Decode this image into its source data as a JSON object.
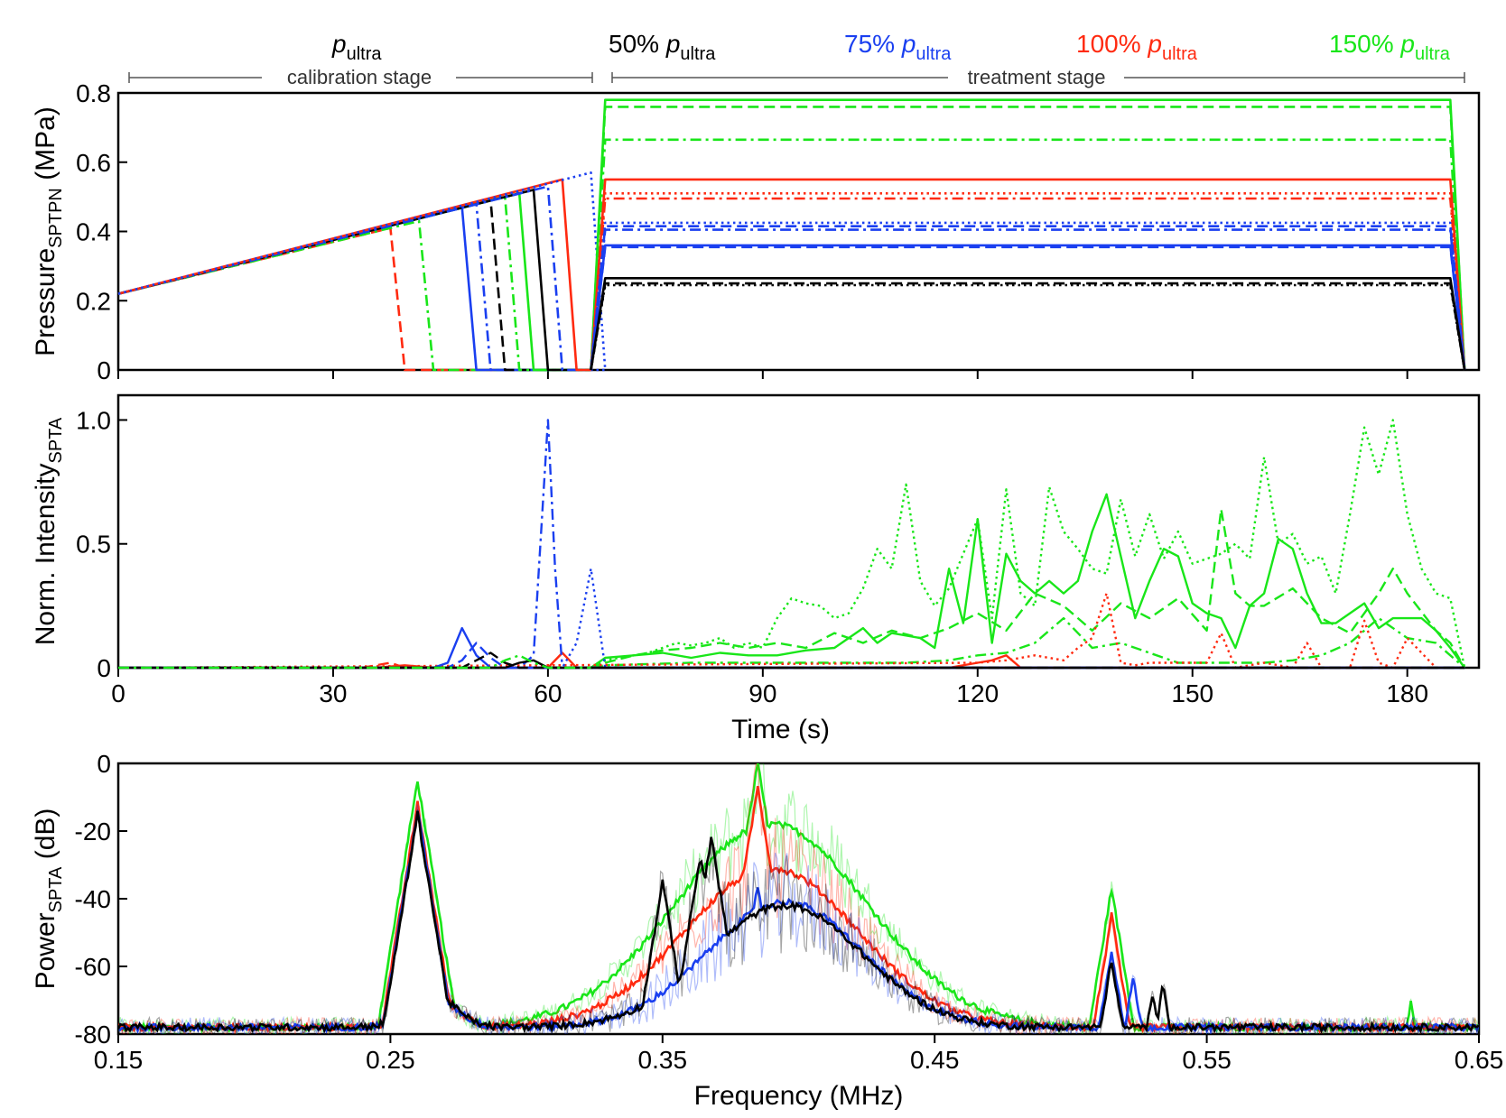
{
  "colors": {
    "black": "#000000",
    "blue": "#1a3ff0",
    "red": "#ff2a10",
    "green": "#19e619",
    "axis": "#000000",
    "bracket": "#555555"
  },
  "header": {
    "calibration": {
      "p": "p",
      "sub": "ultra",
      "stage_label": "calibration stage"
    },
    "treatment_stage_label": "treatment stage",
    "groups": [
      {
        "pct": "50% ",
        "p": "p",
        "sub": "ultra",
        "color": "#000000"
      },
      {
        "pct": "75% ",
        "p": "p",
        "sub": "ultra",
        "color": "#1a3ff0"
      },
      {
        "pct": "100% ",
        "p": "p",
        "sub": "ultra",
        "color": "#ff2a10"
      },
      {
        "pct": "150% ",
        "p": "p",
        "sub": "ultra",
        "color": "#19e619"
      }
    ]
  },
  "chart_data": [
    {
      "id": "pressure",
      "type": "line",
      "ylabel_main": "Pressure",
      "ylabel_sub": "SPTPN",
      "ylabel_unit": " (MPa)",
      "xlim": [
        0,
        190
      ],
      "ylim": [
        0,
        0.8
      ],
      "yticks": [
        "0",
        "0.2",
        "0.4",
        "0.6",
        "0.8"
      ],
      "ytick_values": [
        0,
        0.2,
        0.4,
        0.6,
        0.8
      ],
      "xtick_values": [
        0,
        30,
        60,
        90,
        120,
        150,
        180
      ],
      "calibration_ramp": {
        "start": [
          0,
          0.22
        ],
        "slope_per_s": 0.005
      },
      "calibration_drops": [
        {
          "color": "red",
          "style": "dashed",
          "t_drop": 38,
          "t_end": 40,
          "p_drop": 0.41
        },
        {
          "color": "green",
          "style": "dashdot",
          "t_drop": 42,
          "t_end": 44,
          "p_drop": 0.43
        },
        {
          "color": "blue",
          "style": "solid",
          "t_drop": 48,
          "t_end": 50,
          "p_drop": 0.47
        },
        {
          "color": "blue",
          "style": "dashdot",
          "t_drop": 50,
          "t_end": 52,
          "p_drop": 0.48
        },
        {
          "color": "black",
          "style": "dashed",
          "t_drop": 52,
          "t_end": 54,
          "p_drop": 0.49
        },
        {
          "color": "green",
          "style": "dashdot",
          "t_drop": 54,
          "t_end": 56,
          "p_drop": 0.5
        },
        {
          "color": "green",
          "style": "solid",
          "t_drop": 56,
          "t_end": 58,
          "p_drop": 0.51
        },
        {
          "color": "black",
          "style": "solid",
          "t_drop": 58,
          "t_end": 60,
          "p_drop": 0.52
        },
        {
          "color": "blue",
          "style": "dashdot",
          "t_drop": 60,
          "t_end": 62,
          "p_drop": 0.53
        },
        {
          "color": "red",
          "style": "solid",
          "t_drop": 62,
          "t_end": 64,
          "p_drop": 0.55
        },
        {
          "color": "blue",
          "style": "dotted",
          "t_drop": 66,
          "t_end": 68,
          "p_drop": 0.57
        }
      ],
      "treatment": {
        "t_zero": 66,
        "t_rise": 68,
        "t_fall": 186,
        "t_end": 188,
        "levels": [
          {
            "color": "green",
            "style": "solid",
            "p": 0.78
          },
          {
            "color": "green",
            "style": "dashed",
            "p": 0.76
          },
          {
            "color": "green",
            "style": "dashdot",
            "p": 0.665
          },
          {
            "color": "red",
            "style": "solid",
            "p": 0.55
          },
          {
            "color": "red",
            "style": "dotted",
            "p": 0.51
          },
          {
            "color": "red",
            "style": "dashdot",
            "p": 0.495
          },
          {
            "color": "blue",
            "style": "dotted",
            "p": 0.425
          },
          {
            "color": "blue",
            "style": "dashed",
            "p": 0.415
          },
          {
            "color": "blue",
            "style": "dashdot",
            "p": 0.405
          },
          {
            "color": "blue",
            "style": "solid",
            "p": 0.36
          },
          {
            "color": "blue",
            "style": "dashed",
            "p": 0.355
          },
          {
            "color": "black",
            "style": "solid",
            "p": 0.265
          },
          {
            "color": "black",
            "style": "dashed",
            "p": 0.25
          },
          {
            "color": "black",
            "style": "dotted",
            "p": 0.245
          }
        ]
      }
    },
    {
      "id": "intensity",
      "type": "line",
      "ylabel_main": "Norm. Intensity",
      "ylabel_sub": "SPTA",
      "xlabel": "Time (s)",
      "xlim": [
        0,
        190
      ],
      "ylim": [
        0,
        1.1
      ],
      "yticks": [
        "0",
        "0.5",
        "1.0"
      ],
      "ytick_values": [
        0,
        0.5,
        1.0
      ],
      "xticks": [
        "0",
        "30",
        "60",
        "90",
        "120",
        "150",
        "180"
      ],
      "xtick_values": [
        0,
        30,
        60,
        90,
        120,
        150,
        180
      ],
      "series": [
        {
          "color": "green",
          "style": "dotted",
          "x": [
            0,
            66,
            68,
            70,
            72,
            74,
            76,
            78,
            80,
            82,
            84,
            86,
            88,
            90,
            92,
            94,
            96,
            98,
            100,
            102,
            104,
            106,
            108,
            110,
            112,
            114,
            116,
            118,
            120,
            122,
            124,
            126,
            128,
            130,
            132,
            134,
            136,
            138,
            140,
            142,
            144,
            146,
            148,
            150,
            152,
            154,
            156,
            158,
            160,
            162,
            164,
            166,
            168,
            170,
            172,
            174,
            176,
            178,
            180,
            182,
            184,
            186,
            188
          ],
          "y": [
            0,
            0,
            0.03,
            0.04,
            0.05,
            0.06,
            0.08,
            0.1,
            0.09,
            0.1,
            0.12,
            0.08,
            0.1,
            0.08,
            0.2,
            0.28,
            0.26,
            0.25,
            0.2,
            0.22,
            0.32,
            0.48,
            0.4,
            0.74,
            0.35,
            0.25,
            0.32,
            0.46,
            0.6,
            0.2,
            0.72,
            0.3,
            0.25,
            0.73,
            0.55,
            0.48,
            0.4,
            0.38,
            0.68,
            0.45,
            0.62,
            0.44,
            0.55,
            0.42,
            0.44,
            0.46,
            0.5,
            0.44,
            0.85,
            0.5,
            0.54,
            0.42,
            0.45,
            0.3,
            0.62,
            0.97,
            0.78,
            1.0,
            0.62,
            0.4,
            0.3,
            0.28,
            0.0
          ]
        },
        {
          "color": "green",
          "style": "solid",
          "x": [
            0,
            66,
            68,
            72,
            76,
            80,
            84,
            88,
            92,
            96,
            100,
            104,
            106,
            108,
            112,
            114,
            116,
            118,
            120,
            122,
            124,
            126,
            128,
            130,
            132,
            134,
            136,
            138,
            140,
            142,
            144,
            146,
            148,
            150,
            152,
            154,
            156,
            158,
            160,
            162,
            164,
            166,
            168,
            170,
            172,
            174,
            176,
            178,
            180,
            182,
            184,
            186,
            188
          ],
          "y": [
            0,
            0,
            0.04,
            0.05,
            0.06,
            0.04,
            0.06,
            0.05,
            0.05,
            0.07,
            0.08,
            0.16,
            0.1,
            0.14,
            0.12,
            0.08,
            0.4,
            0.18,
            0.6,
            0.1,
            0.46,
            0.35,
            0.3,
            0.35,
            0.3,
            0.35,
            0.55,
            0.7,
            0.45,
            0.2,
            0.35,
            0.48,
            0.45,
            0.26,
            0.22,
            0.2,
            0.08,
            0.25,
            0.3,
            0.52,
            0.48,
            0.3,
            0.18,
            0.18,
            0.22,
            0.26,
            0.16,
            0.2,
            0.2,
            0.2,
            0.15,
            0.08,
            0.0
          ]
        },
        {
          "color": "green",
          "style": "dashed",
          "x": [
            0,
            66,
            68,
            72,
            76,
            80,
            84,
            88,
            92,
            96,
            100,
            104,
            108,
            112,
            116,
            120,
            124,
            128,
            132,
            136,
            140,
            144,
            148,
            152,
            154,
            156,
            158,
            160,
            164,
            168,
            172,
            176,
            178,
            180,
            184,
            186,
            188
          ],
          "y": [
            0,
            0,
            0.02,
            0.05,
            0.07,
            0.08,
            0.1,
            0.08,
            0.1,
            0.08,
            0.14,
            0.1,
            0.15,
            0.12,
            0.16,
            0.22,
            0.15,
            0.3,
            0.25,
            0.15,
            0.26,
            0.2,
            0.28,
            0.15,
            0.64,
            0.3,
            0.25,
            0.25,
            0.32,
            0.2,
            0.14,
            0.3,
            0.4,
            0.3,
            0.15,
            0.1,
            0.0
          ]
        },
        {
          "color": "green",
          "style": "dashdot",
          "x": [
            0,
            66,
            68,
            80,
            100,
            110,
            116,
            120,
            124,
            128,
            132,
            136,
            140,
            144,
            148,
            152,
            156,
            160,
            164,
            168,
            172,
            176,
            180,
            184,
            188
          ],
          "y": [
            0,
            0,
            0.01,
            0.02,
            0.02,
            0.02,
            0.03,
            0.05,
            0.06,
            0.1,
            0.2,
            0.08,
            0.1,
            0.06,
            0.02,
            0.02,
            0.02,
            0.02,
            0.03,
            0.05,
            0.1,
            0.2,
            0.12,
            0.1,
            0.0
          ]
        },
        {
          "color": "red",
          "style": "dotted",
          "x": [
            0,
            120,
            124,
            128,
            132,
            134,
            136,
            138,
            140,
            142,
            144,
            148,
            152,
            154,
            156,
            160,
            164,
            166,
            168,
            172,
            174,
            176,
            178,
            180,
            184,
            188
          ],
          "y": [
            0,
            0.02,
            0.03,
            0.05,
            0.03,
            0.08,
            0.12,
            0.3,
            0.02,
            0.01,
            0.02,
            0.02,
            0.02,
            0.14,
            0.0,
            0.02,
            0.0,
            0.1,
            0.0,
            0.0,
            0.19,
            0.02,
            0.0,
            0.12,
            0.0,
            0.0
          ]
        },
        {
          "color": "red",
          "style": "solid",
          "x": [
            0,
            36,
            40,
            44,
            48,
            56,
            60,
            62,
            64,
            66,
            68,
            116,
            120,
            122,
            124,
            126,
            128,
            188
          ],
          "y": [
            0,
            0.0,
            0.01,
            0.0,
            0.0,
            0.0,
            0.0,
            0.06,
            0.0,
            0.0,
            0.0,
            0.0,
            0.02,
            0.03,
            0.05,
            0.0,
            0.0,
            0.0
          ]
        },
        {
          "color": "red",
          "style": "dashed",
          "x": [
            0,
            34,
            38,
            40,
            48,
            60,
            188
          ],
          "y": [
            0,
            0.0,
            0.02,
            0.0,
            0.0,
            0.0,
            0.0
          ]
        },
        {
          "color": "blue",
          "style": "solid",
          "x": [
            0,
            40,
            44,
            46,
            48,
            50,
            52,
            54,
            188
          ],
          "y": [
            0,
            0.0,
            0.0,
            0.02,
            0.16,
            0.05,
            0.0,
            0.0,
            0.0
          ]
        },
        {
          "color": "blue",
          "style": "dashed",
          "x": [
            0,
            46,
            48,
            50,
            52,
            54,
            188
          ],
          "y": [
            0,
            0.0,
            0.03,
            0.1,
            0.04,
            0.0,
            0.0
          ]
        },
        {
          "color": "blue",
          "style": "dashdot",
          "x": [
            0,
            56,
            58,
            60,
            61,
            62,
            64,
            188
          ],
          "y": [
            0,
            0.0,
            0.05,
            1.0,
            0.4,
            0.0,
            0.0,
            0.0
          ]
        },
        {
          "color": "blue",
          "style": "dotted",
          "x": [
            0,
            62,
            64,
            66,
            68,
            70,
            188
          ],
          "y": [
            0,
            0.0,
            0.1,
            0.4,
            0.0,
            0.0,
            0.0
          ]
        },
        {
          "color": "black",
          "style": "dashed",
          "x": [
            0,
            48,
            50,
            52,
            54,
            56,
            188
          ],
          "y": [
            0,
            0.0,
            0.03,
            0.06,
            0.02,
            0.0,
            0.0
          ]
        },
        {
          "color": "black",
          "style": "solid",
          "x": [
            0,
            54,
            56,
            58,
            60,
            62,
            188
          ],
          "y": [
            0,
            0.0,
            0.02,
            0.03,
            0.0,
            0.0,
            0.0
          ]
        },
        {
          "color": "green",
          "style": "dashdot",
          "x": [
            0,
            52,
            54,
            56,
            58,
            60,
            66
          ],
          "y": [
            0,
            0.0,
            0.03,
            0.05,
            0.02,
            0.0,
            0.0
          ]
        }
      ]
    },
    {
      "id": "spectrum",
      "type": "line",
      "ylabel_main": "Power",
      "ylabel_sub": "SPTA",
      "ylabel_unit": " (dB)",
      "xlabel": "Frequency (MHz)",
      "xlim": [
        0.15,
        0.65
      ],
      "ylim": [
        -80,
        0
      ],
      "xticks": [
        "0.15",
        "0.25",
        "0.35",
        "0.45",
        "0.55",
        "0.65"
      ],
      "xtick_values": [
        0.15,
        0.25,
        0.35,
        0.45,
        0.55,
        0.65
      ],
      "yticks": [
        "-80",
        "-60",
        "-40",
        "-20",
        "0"
      ],
      "ytick_values": [
        -80,
        -60,
        -40,
        -20,
        0
      ],
      "series": [
        {
          "name": "",
          "color": "green",
          "baseline": -78,
          "hump_peak": -18,
          "hump_center": 0.39,
          "hump_width": 0.05,
          "peaks": [
            [
              0.26,
              -5
            ],
            [
              0.385,
              0
            ],
            [
              0.515,
              -37
            ],
            [
              0.625,
              -70
            ]
          ]
        },
        {
          "name": "",
          "color": "red",
          "baseline": -78,
          "hump_peak": -31,
          "hump_center": 0.39,
          "hump_width": 0.045,
          "peaks": [
            [
              0.26,
              -12
            ],
            [
              0.385,
              -7
            ],
            [
              0.515,
              -45
            ]
          ]
        },
        {
          "name": "",
          "color": "blue",
          "baseline": -78,
          "hump_peak": -41,
          "hump_center": 0.395,
          "hump_width": 0.04,
          "peaks": [
            [
              0.26,
              -14
            ],
            [
              0.385,
              -36
            ],
            [
              0.515,
              -55
            ],
            [
              0.523,
              -63
            ]
          ]
        },
        {
          "name": "",
          "color": "black",
          "baseline": -78,
          "hump_peak": -42,
          "hump_center": 0.395,
          "hump_width": 0.04,
          "peaks": [
            [
              0.26,
              -15
            ],
            [
              0.35,
              -35
            ],
            [
              0.364,
              -27
            ],
            [
              0.368,
              -22
            ],
            [
              0.515,
              -58
            ],
            [
              0.53,
              -68
            ],
            [
              0.534,
              -65
            ]
          ]
        }
      ]
    }
  ]
}
